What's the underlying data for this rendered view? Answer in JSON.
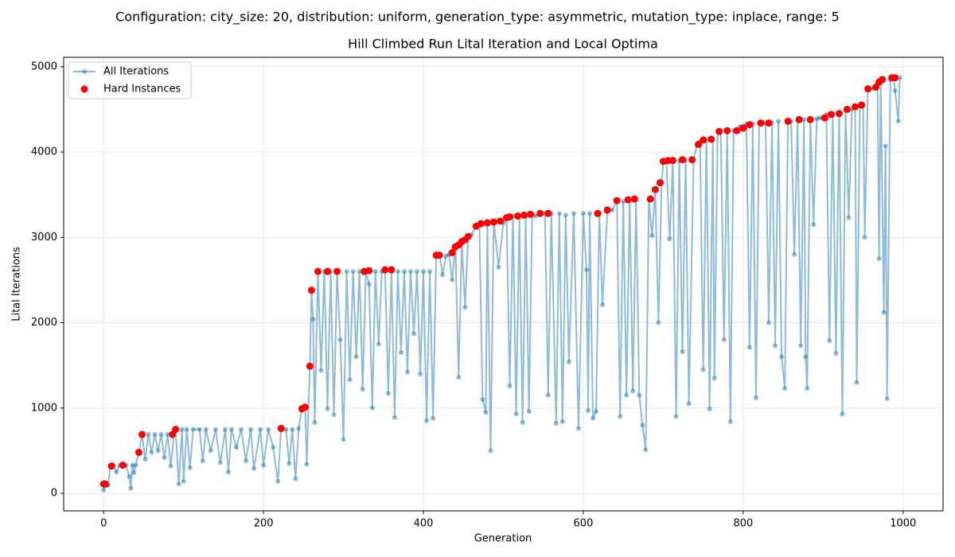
{
  "chart_data": {
    "type": "line",
    "suptitle": "Configuration: city_size: 20, distribution: uniform, generation_type: asymmetric, mutation_type: inplace, range: 5",
    "title": "Hill Climbed Run Lital Iteration and Local Optima",
    "xlabel": "Generation",
    "ylabel": "Lital Iterations",
    "xlim": [
      -50,
      1050
    ],
    "ylim": [
      -205,
      5110
    ],
    "xticks": [
      0,
      200,
      400,
      600,
      800,
      1000
    ],
    "yticks": [
      0,
      1000,
      2000,
      3000,
      4000,
      5000
    ],
    "grid": true,
    "legend": "upper left",
    "series": [
      {
        "name": "All Iterations",
        "color": "#1f77b4",
        "style": "line-marker",
        "x": [
          0,
          2,
          4,
          6,
          8,
          12,
          16,
          20,
          24,
          28,
          32,
          34,
          36,
          38,
          40,
          44,
          48,
          52,
          56,
          60,
          64,
          68,
          72,
          76,
          80,
          84,
          88,
          90,
          94,
          98,
          100,
          104,
          108,
          112,
          120,
          124,
          128,
          134,
          140,
          146,
          152,
          156,
          160,
          166,
          172,
          178,
          184,
          188,
          196,
          200,
          206,
          212,
          218,
          222,
          228,
          232,
          236,
          240,
          244,
          248,
          252,
          254,
          258,
          260,
          262,
          264,
          268,
          272,
          276,
          280,
          284,
          288,
          292,
          296,
          300,
          304,
          308,
          312,
          316,
          320,
          324,
          328,
          332,
          336,
          340,
          344,
          348,
          352,
          356,
          360,
          364,
          368,
          372,
          376,
          380,
          384,
          388,
          392,
          396,
          400,
          404,
          408,
          412,
          416,
          420,
          424,
          428,
          432,
          436,
          440,
          444,
          448,
          452,
          456,
          460,
          466,
          470,
          474,
          478,
          480,
          484,
          488,
          494,
          500,
          504,
          508,
          512,
          516,
          520,
          524,
          528,
          532,
          536,
          540,
          546,
          552,
          556,
          560,
          566,
          570,
          574,
          578,
          582,
          588,
          594,
          600,
          604,
          606,
          608,
          612,
          616,
          620,
          624,
          630,
          636,
          642,
          646,
          650,
          654,
          658,
          662,
          666,
          670,
          674,
          678,
          682,
          686,
          690,
          694,
          698,
          700,
          704,
          708,
          712,
          716,
          720,
          724,
          728,
          732,
          738,
          742,
          746,
          750,
          754,
          758,
          762,
          764,
          768,
          772,
          776,
          780,
          784,
          788,
          792,
          796,
          800,
          804,
          808,
          812,
          816,
          820,
          824,
          828,
          832,
          836,
          840,
          844,
          848,
          852,
          856,
          860,
          864,
          868,
          872,
          876,
          878,
          880,
          884,
          888,
          892,
          896,
          900,
          904,
          908,
          912,
          916,
          920,
          924,
          928,
          932,
          936,
          940,
          942,
          946,
          950,
          952,
          956,
          960,
          964,
          968,
          970,
          972,
          976,
          978,
          980,
          984,
          988,
          990,
          994,
          996
        ],
        "values": [
          40,
          110,
          90,
          100,
          320,
          330,
          250,
          330,
          330,
          330,
          200,
          60,
          330,
          240,
          330,
          480,
          690,
          400,
          690,
          480,
          690,
          500,
          690,
          420,
          690,
          320,
          700,
          750,
          110,
          750,
          140,
          750,
          300,
          750,
          750,
          380,
          750,
          500,
          750,
          360,
          750,
          250,
          750,
          540,
          750,
          380,
          750,
          290,
          750,
          330,
          750,
          540,
          140,
          760,
          750,
          350,
          750,
          170,
          760,
          990,
          1010,
          340,
          1500,
          2380,
          2040,
          830,
          2600,
          1440,
          2600,
          990,
          2600,
          920,
          2600,
          1800,
          630,
          2600,
          1330,
          2600,
          1600,
          2600,
          1220,
          2600,
          2450,
          1000,
          2600,
          1750,
          2600,
          2620,
          1170,
          2600,
          890,
          2600,
          1650,
          2600,
          1420,
          2600,
          1870,
          2600,
          1400,
          2600,
          850,
          2600,
          880,
          2790,
          2800,
          2560,
          2780,
          2800,
          2500,
          2900,
          1360,
          2950,
          2180,
          3000,
          3030,
          3130,
          3160,
          1100,
          950,
          3170,
          500,
          3190,
          2650,
          3170,
          3230,
          1260,
          3250,
          930,
          3250,
          830,
          3250,
          960,
          3270,
          3250,
          3280,
          3280,
          1150,
          3280,
          820,
          3280,
          840,
          3260,
          1540,
          3280,
          760,
          3280,
          2620,
          970,
          3280,
          880,
          960,
          3280,
          2210,
          3300,
          3320,
          3430,
          900,
          3420,
          1150,
          3440,
          1200,
          3440,
          1150,
          800,
          510,
          3440,
          3020,
          3560,
          2000,
          3650,
          3880,
          3880,
          2980,
          3900,
          900,
          3900,
          1660,
          3910,
          1050,
          3910,
          4080,
          4120,
          1450,
          4140,
          990,
          4140,
          1350,
          4240,
          4250,
          1800,
          4250,
          840,
          4250,
          4250,
          4300,
          4300,
          4330,
          1710,
          4330,
          1120,
          4340,
          4330,
          4340,
          2000,
          4340,
          1730,
          4360,
          1600,
          1230,
          4370,
          4360,
          2800,
          4370,
          1730,
          4380,
          1600,
          1230,
          4380,
          3150,
          4390,
          4400,
          4400,
          4440,
          1790,
          4450,
          1640,
          4460,
          930,
          4490,
          3230,
          4500,
          4530,
          1300,
          4540,
          4550,
          3000,
          4740,
          4740,
          4750,
          4800,
          2750,
          4850,
          2120,
          4070,
          1110,
          4850,
          4870,
          4720,
          4360,
          4870
        ]
      },
      {
        "name": "Hard Instances",
        "color": "#ff0000",
        "style": "marker",
        "x": [
          0,
          2,
          10,
          24,
          44,
          48,
          86,
          90,
          222,
          248,
          252,
          258,
          260,
          268,
          280,
          292,
          326,
          332,
          352,
          360,
          416,
          420,
          436,
          440,
          444,
          448,
          452,
          456,
          466,
          472,
          480,
          488,
          496,
          504,
          508,
          518,
          526,
          534,
          546,
          556,
          618,
          630,
          642,
          656,
          664,
          684,
          690,
          696,
          700,
          706,
          712,
          724,
          736,
          744,
          750,
          760,
          770,
          780,
          792,
          800,
          808,
          822,
          832,
          856,
          870,
          884,
          902,
          910,
          920,
          930,
          940,
          948,
          956,
          966,
          970,
          974,
          986,
          990
        ],
        "values": [
          110,
          110,
          320,
          330,
          480,
          690,
          690,
          750,
          760,
          990,
          1010,
          1490,
          2380,
          2600,
          2600,
          2600,
          2600,
          2610,
          2620,
          2620,
          2790,
          2790,
          2820,
          2890,
          2910,
          2950,
          2970,
          3010,
          3130,
          3160,
          3170,
          3180,
          3190,
          3230,
          3240,
          3250,
          3260,
          3270,
          3280,
          3280,
          3280,
          3320,
          3430,
          3440,
          3450,
          3450,
          3560,
          3640,
          3890,
          3900,
          3900,
          3910,
          3910,
          4090,
          4140,
          4150,
          4240,
          4250,
          4250,
          4280,
          4320,
          4340,
          4340,
          4360,
          4380,
          4380,
          4400,
          4440,
          4450,
          4500,
          4530,
          4550,
          4740,
          4760,
          4820,
          4850,
          4870,
          4870
        ]
      }
    ]
  }
}
